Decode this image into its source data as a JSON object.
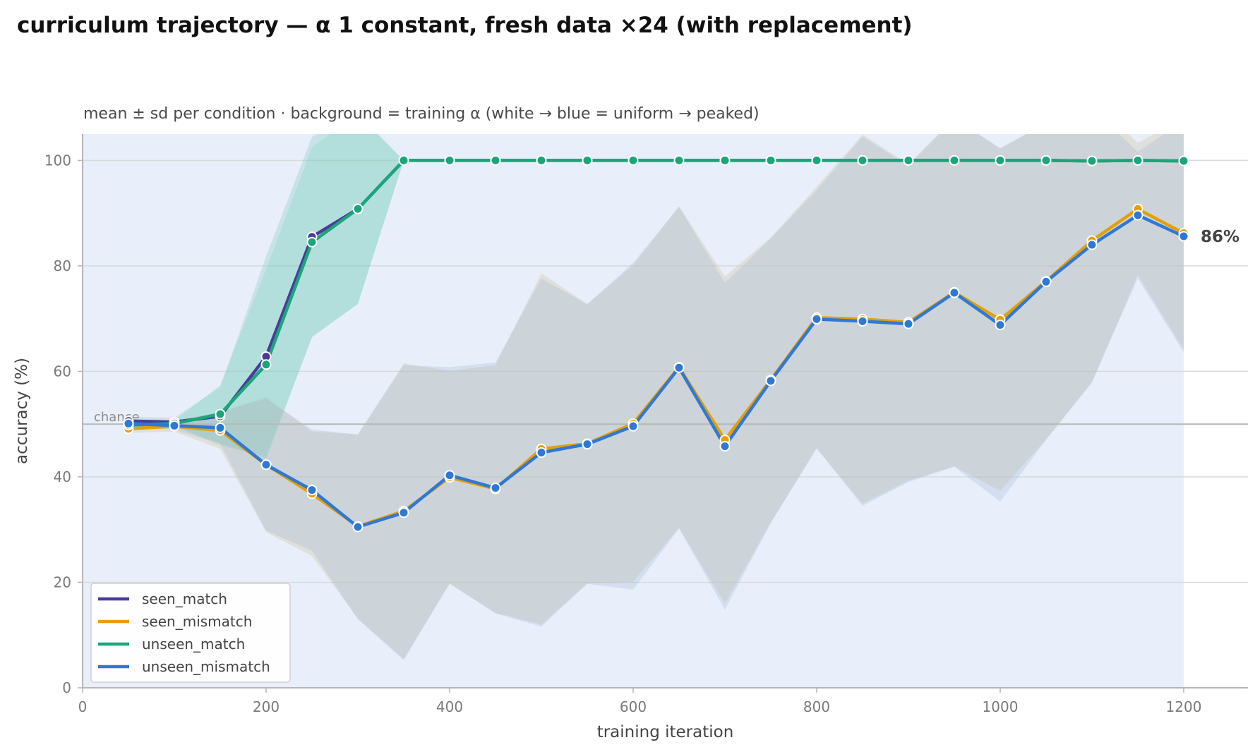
{
  "chart_data": {
    "type": "line",
    "title": "curriculum trajectory — α 1 constant, fresh data ×24 (with replacement)",
    "subtitle": "mean ± sd per condition · background = training α (white → blue = uniform → peaked)",
    "xlabel": "training iteration",
    "ylabel": "accuracy (%)",
    "xlim": [
      0,
      1270
    ],
    "ylim": [
      0,
      105
    ],
    "xticks": [
      0,
      200,
      400,
      600,
      800,
      1000,
      1200
    ],
    "yticks": [
      0,
      20,
      40,
      60,
      80,
      100
    ],
    "grid": "horizontal",
    "legend_position": "bottom-left",
    "background_color": "#e8effb",
    "chance": {
      "label": "chance",
      "value": 50
    },
    "end_annotation": {
      "text": "86%",
      "x": 1200,
      "y": 85.6
    },
    "x": [
      50,
      100,
      150,
      200,
      250,
      300,
      350,
      400,
      450,
      500,
      550,
      600,
      650,
      700,
      750,
      800,
      850,
      900,
      950,
      1000,
      1050,
      1100,
      1150,
      1200
    ],
    "series": [
      {
        "name": "seen_match",
        "color": "#4b3a9e",
        "values": [
          50.6,
          50.4,
          51.5,
          62.8,
          85.5,
          90.8,
          100,
          100,
          100,
          100,
          100,
          100,
          100,
          100,
          100,
          100,
          100,
          100,
          100,
          100,
          100,
          99.9,
          100,
          99.9
        ],
        "sd": [
          0.8,
          0.8,
          5.5,
          19.0,
          19.0,
          18.0,
          0,
          0,
          0,
          0,
          0,
          0,
          0,
          0,
          0,
          0,
          0,
          0,
          0,
          0,
          0,
          0,
          0,
          0
        ]
      },
      {
        "name": "seen_mismatch",
        "color": "#e69f00",
        "values": [
          49.1,
          49.6,
          48.8,
          42.3,
          36.8,
          30.6,
          33.5,
          39.9,
          37.7,
          45.3,
          46.3,
          50.1,
          60.8,
          47.0,
          58.4,
          70.2,
          69.9,
          69.3,
          75.0,
          69.8,
          77.1,
          84.8,
          90.8,
          86.2
        ],
        "sd": [
          0.8,
          1.0,
          3.5,
          12.8,
          11.8,
          17.5,
          28.0,
          20.2,
          23.5,
          33.3,
          26.5,
          30.0,
          30.5,
          31.0,
          27.0,
          24.8,
          35.0,
          30.0,
          33.0,
          32.5,
          30.0,
          27.0,
          12.5,
          22.0
        ]
      },
      {
        "name": "unseen_match",
        "color": "#1aa678",
        "values": [
          49.8,
          50.1,
          51.9,
          61.3,
          84.5,
          90.8,
          100,
          100,
          100,
          100,
          100,
          100,
          100,
          100,
          100,
          100,
          100,
          100,
          100,
          100,
          100,
          99.9,
          100,
          99.9
        ],
        "sd": [
          0.5,
          0.5,
          5.5,
          18.0,
          18.0,
          18.0,
          0,
          0,
          0,
          0,
          0,
          0,
          0,
          0,
          0,
          0,
          0,
          0,
          0,
          0,
          0,
          0,
          0,
          0
        ]
      },
      {
        "name": "unseen_mismatch",
        "color": "#2f78d6",
        "values": [
          50.1,
          49.7,
          49.3,
          42.3,
          37.5,
          30.5,
          33.2,
          40.3,
          37.9,
          44.6,
          46.2,
          49.6,
          60.7,
          45.8,
          58.2,
          69.9,
          69.5,
          69.0,
          74.9,
          68.8,
          77.0,
          84.0,
          89.6,
          85.6
        ],
        "sd": [
          0.5,
          0.8,
          3.0,
          12.5,
          11.5,
          17.5,
          28.0,
          20.5,
          23.8,
          33.0,
          26.5,
          31.0,
          30.5,
          31.0,
          27.0,
          24.5,
          35.0,
          30.0,
          33.0,
          33.5,
          30.0,
          26.0,
          12.0,
          22.0
        ]
      }
    ]
  }
}
